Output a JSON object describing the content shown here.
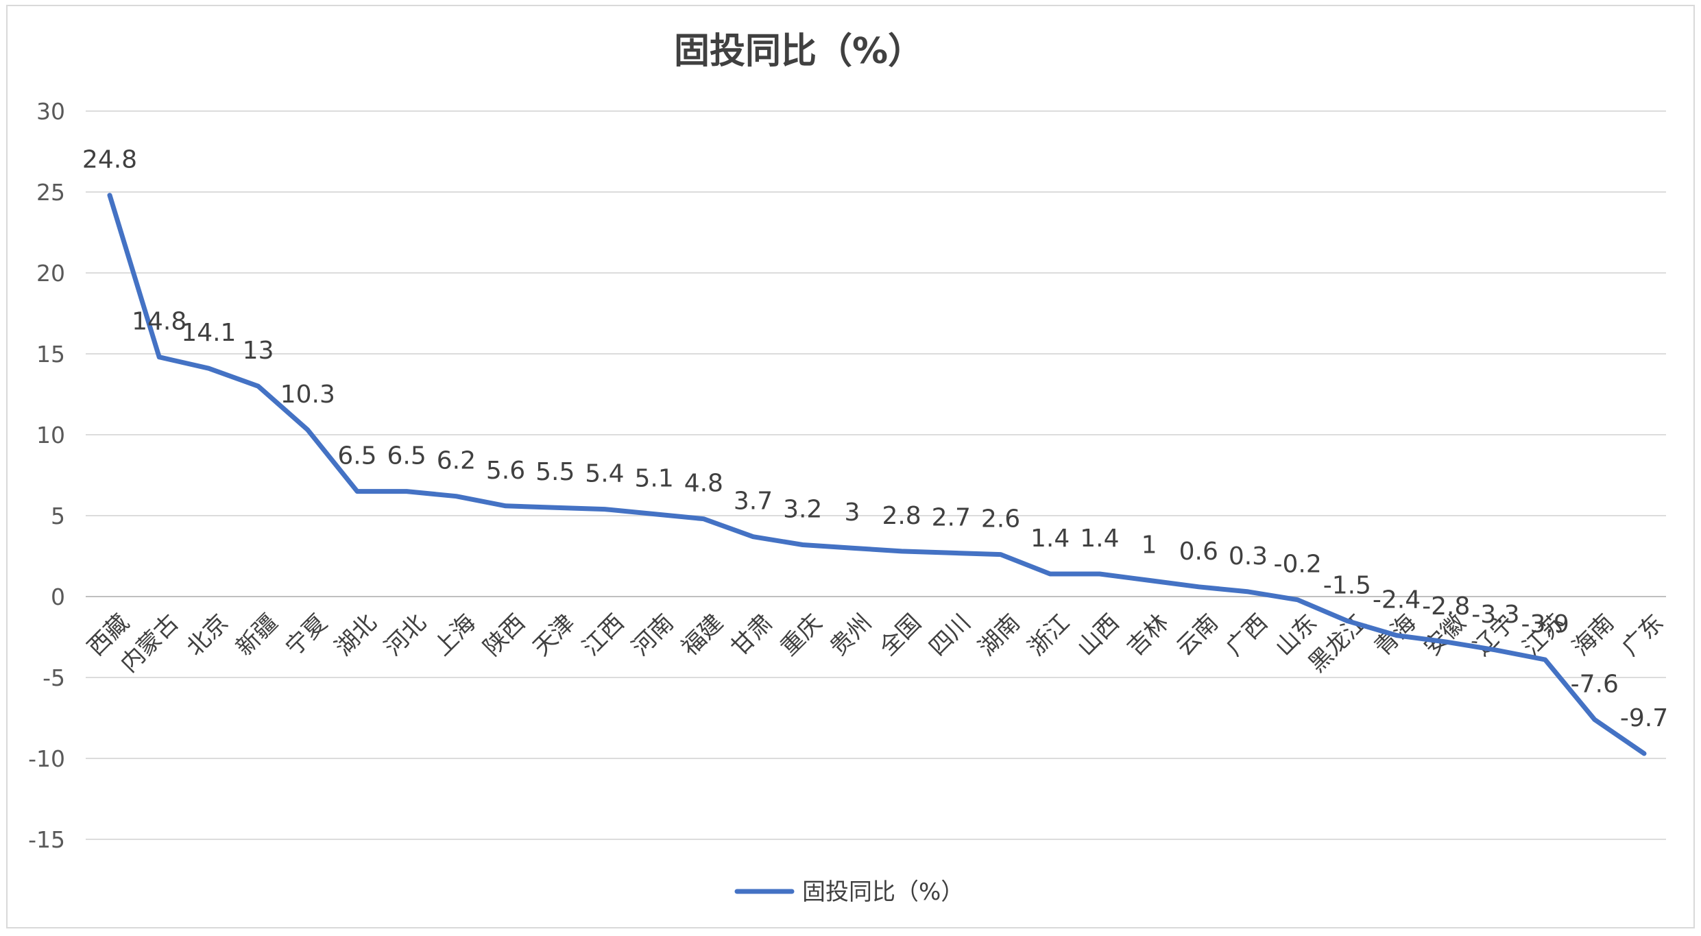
{
  "chart_data": {
    "type": "line",
    "title": "固投同比（%）",
    "xlabel": "",
    "ylabel": "",
    "ylim": [
      -15,
      30
    ],
    "yticks": [
      30,
      25,
      20,
      15,
      10,
      5,
      0,
      -5,
      -10,
      -15
    ],
    "grid": true,
    "legend_position": "bottom",
    "color": "#4472C4",
    "categories": [
      "西藏",
      "内蒙古",
      "北京",
      "新疆",
      "宁夏",
      "湖北",
      "河北",
      "上海",
      "陕西",
      "天津",
      "江西",
      "河南",
      "福建",
      "甘肃",
      "重庆",
      "贵州",
      "全国",
      "四川",
      "湖南",
      "浙江",
      "山西",
      "吉林",
      "云南",
      "广西",
      "山东",
      "黑龙江",
      "青海",
      "安徽",
      "辽宁",
      "江苏",
      "海南",
      "广东"
    ],
    "series": [
      {
        "name": "固投同比（%）",
        "values": [
          24.8,
          14.8,
          14.1,
          13,
          10.3,
          6.5,
          6.5,
          6.2,
          5.6,
          5.5,
          5.4,
          5.1,
          4.8,
          3.7,
          3.2,
          3,
          2.8,
          2.7,
          2.6,
          1.4,
          1.4,
          1,
          0.6,
          0.3,
          -0.2,
          -1.5,
          -2.4,
          -2.8,
          -3.3,
          -3.9,
          -7.6,
          -9.7
        ]
      }
    ]
  }
}
